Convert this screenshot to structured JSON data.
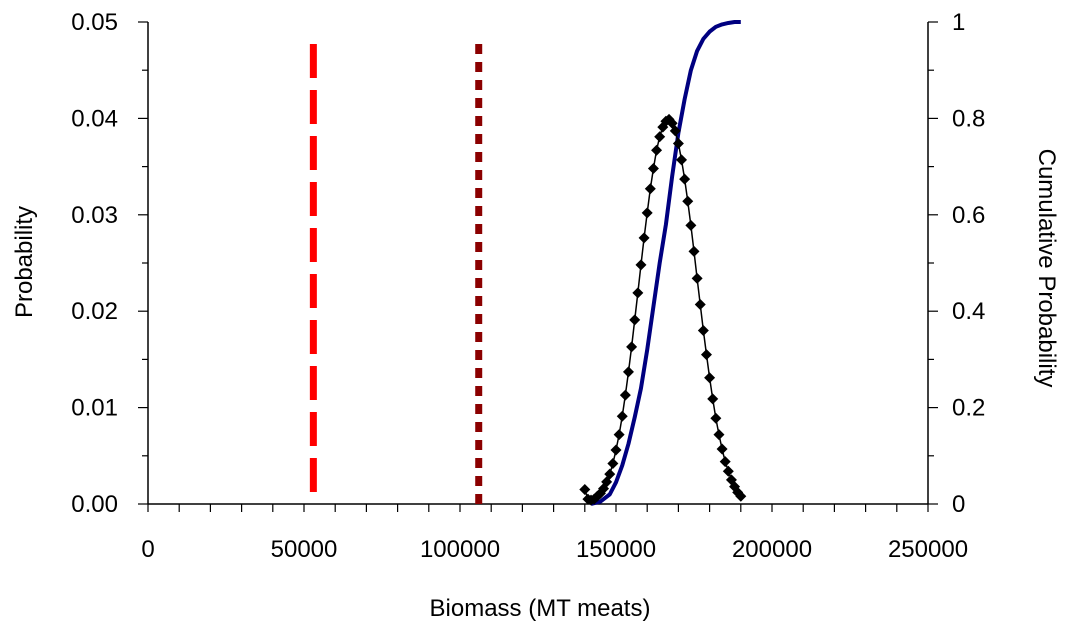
{
  "chart_data": {
    "type": "line",
    "xlabel": "Biomass (MT meats)",
    "ylabel": "Probability",
    "y2label": "Cumulative Probability",
    "xlim": [
      0,
      250000
    ],
    "ylim": [
      0,
      0.05
    ],
    "y2lim": [
      0,
      1
    ],
    "x_ticks": [
      0,
      50000,
      100000,
      150000,
      200000,
      250000
    ],
    "x_tick_labels": [
      "0",
      "50000",
      "100000",
      "150000",
      "200000",
      "250000"
    ],
    "y_ticks": [
      0,
      0.01,
      0.02,
      0.03,
      0.04,
      0.05
    ],
    "y_tick_labels": [
      "0.00",
      "0.01",
      "0.02",
      "0.03",
      "0.04",
      "0.05"
    ],
    "y2_ticks": [
      0,
      0.2,
      0.4,
      0.6,
      0.8,
      1
    ],
    "y2_tick_labels": [
      "0",
      "0.2",
      "0.4",
      "0.6",
      "0.8",
      "1"
    ],
    "grid": false,
    "reference_lines": [
      {
        "x": 53000,
        "style": "long-dash",
        "color": "#ff0000"
      },
      {
        "x": 106000,
        "style": "short-dash",
        "color": "#8b0000"
      }
    ],
    "series": [
      {
        "axis": "left",
        "style": "line-with-diamond-markers",
        "color": "#000000",
        "x": [
          140000,
          141000,
          142000,
          143000,
          144000,
          145000,
          146000,
          147000,
          148000,
          149000,
          150000,
          151000,
          152000,
          153000,
          154000,
          155000,
          156000,
          157000,
          158000,
          159000,
          160000,
          161000,
          162000,
          163000,
          164000,
          165000,
          166000,
          167000,
          168000,
          169000,
          170000,
          171000,
          172000,
          173000,
          174000,
          175000,
          176000,
          177000,
          178000,
          179000,
          180000,
          181000,
          182000,
          183000,
          184000,
          185000,
          186000,
          187000,
          188000,
          189000,
          190000
        ],
        "y": [
          0.0015,
          0.0005,
          0.0004,
          0.0005,
          0.0008,
          0.0011,
          0.0016,
          0.0023,
          0.0031,
          0.0042,
          0.0056,
          0.0072,
          0.0091,
          0.0113,
          0.0137,
          0.0163,
          0.0191,
          0.0219,
          0.0248,
          0.0276,
          0.0302,
          0.0327,
          0.0348,
          0.0367,
          0.0381,
          0.0391,
          0.0397,
          0.0399,
          0.0395,
          0.0387,
          0.0374,
          0.0357,
          0.0337,
          0.0314,
          0.0289,
          0.0262,
          0.0234,
          0.0207,
          0.018,
          0.0155,
          0.0131,
          0.0109,
          0.0089,
          0.0072,
          0.0057,
          0.0044,
          0.0034,
          0.0025,
          0.0018,
          0.0012,
          0.0008
        ]
      },
      {
        "axis": "right",
        "style": "line",
        "color": "#000080",
        "x": [
          142000,
          145000,
          148000,
          150000,
          152000,
          154000,
          156000,
          158000,
          160000,
          162000,
          164000,
          166000,
          168000,
          170000,
          172000,
          174000,
          176000,
          178000,
          180000,
          182000,
          184000,
          186000,
          188000,
          190000
        ],
        "y": [
          0.0,
          0.005,
          0.02,
          0.045,
          0.08,
          0.125,
          0.18,
          0.24,
          0.32,
          0.41,
          0.5,
          0.58,
          0.68,
          0.77,
          0.84,
          0.9,
          0.94,
          0.965,
          0.98,
          0.99,
          0.995,
          0.998,
          1.0,
          1.0
        ]
      }
    ]
  }
}
